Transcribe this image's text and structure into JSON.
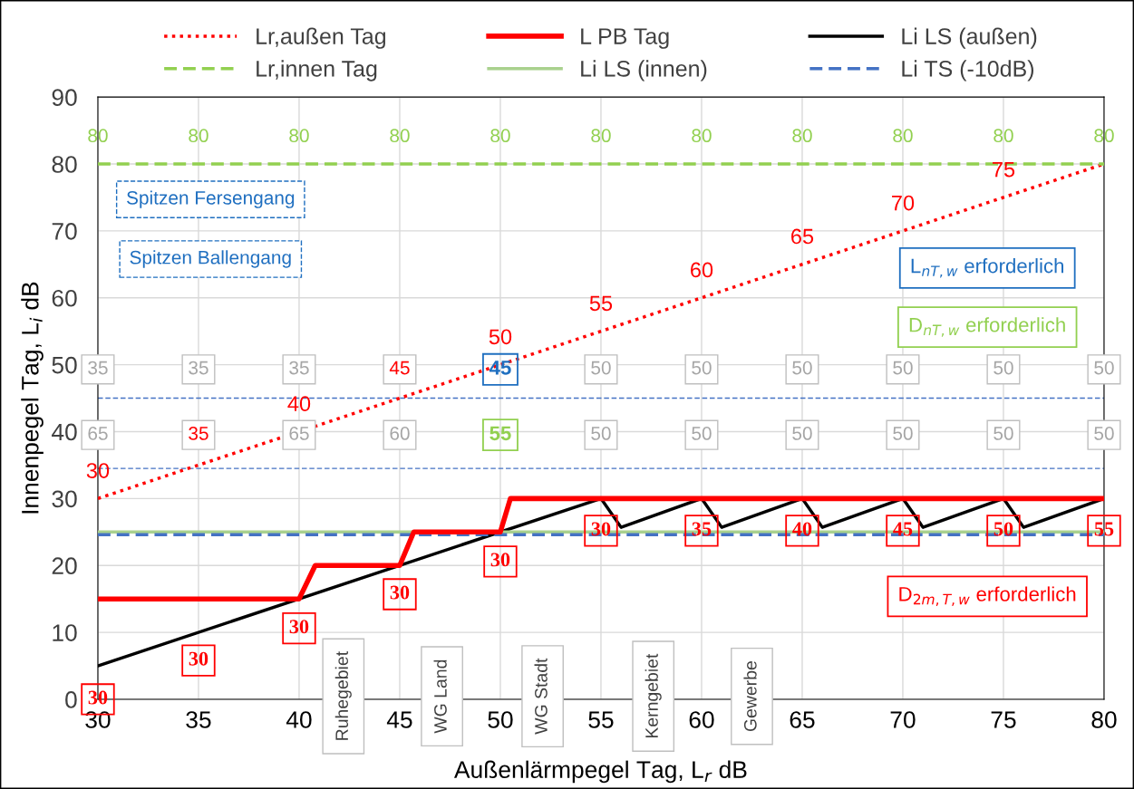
{
  "chart_data": {
    "type": "line",
    "xlabel": "Außenlärmpegel Tag, L$_{r}$ dB",
    "ylabel": "Innenpegel Tag, L$_{i}$ dB",
    "xlim": [
      30,
      80
    ],
    "xticks": [
      30,
      35,
      40,
      45,
      50,
      55,
      60,
      65,
      70,
      75,
      80
    ],
    "ylim": [
      0,
      90
    ],
    "yticks": [
      0,
      10,
      20,
      30,
      40,
      50,
      60,
      70,
      80,
      90
    ],
    "grid": true,
    "legend": "top",
    "series": [
      {
        "name": "Lr,außen Tag",
        "color": "#ff0000",
        "line_style": "dotted",
        "x": [
          30,
          80
        ],
        "values": [
          30,
          80
        ]
      },
      {
        "name": "L PB Tag",
        "color": "#ff0000",
        "line_style": "solid",
        "x": [
          30,
          40,
          40.8,
          45,
          45.7,
          50,
          50.5,
          80
        ],
        "values": [
          15,
          15,
          20,
          20,
          25,
          25,
          30,
          30
        ]
      },
      {
        "name": "Li LS (außen)",
        "color": "#000000",
        "line_style": "solid",
        "x": [
          30,
          55,
          56,
          60,
          61,
          65,
          66,
          70,
          71,
          75,
          76,
          80
        ],
        "values": [
          5,
          30,
          25.7,
          30,
          25.7,
          30,
          25.7,
          30,
          25.7,
          30,
          25.7,
          30
        ]
      },
      {
        "name": "Lr,innen Tag",
        "color": "#92d050",
        "line_style": "dashed",
        "x": [
          30,
          80
        ],
        "values": [
          80,
          80
        ]
      },
      {
        "name": "Li LS (innen)",
        "color": "#a9d18e",
        "line_style": "solid",
        "x": [
          30,
          80
        ],
        "values": [
          25,
          25
        ]
      },
      {
        "name": "Li TS (-10dB)",
        "color": "#4472c4",
        "line_style": "dashed",
        "x": [
          30,
          80
        ],
        "values": [
          24.6,
          24.6
        ]
      }
    ],
    "ref_lines": [
      {
        "axis": "y",
        "value": 45,
        "color": "#4472c4",
        "line_style": "dashed"
      },
      {
        "axis": "y",
        "value": 34.5,
        "color": "#4472c4",
        "line_style": "dashed"
      }
    ],
    "annotations": [
      "80",
      "80",
      "80",
      "80",
      "80",
      "80",
      "80",
      "80",
      "80",
      "80",
      "80",
      "30",
      "35",
      "40",
      "45",
      "50",
      "55",
      "60",
      "65",
      "70",
      "75",
      "35",
      "35",
      "35",
      "45",
      "45",
      "50",
      "50",
      "50",
      "50",
      "50",
      "50",
      "65",
      "35",
      "65",
      "60",
      "55",
      "50",
      "50",
      "50",
      "50",
      "50",
      "50",
      "30",
      "30",
      "30",
      "30",
      "30",
      "30",
      "35",
      "40",
      "45",
      "50",
      "55",
      "Ruhegebiet",
      "WG Land",
      "WG Stadt",
      "Kerngebiet",
      "Gewerbe",
      "Spitzen Fersengang",
      "Spitzen Ballengang",
      "L$_{nT,w}$ erforderlich",
      "D$_{nT,w}$ erforderlich",
      "D$_{2m,T,w}$ erforderlich"
    ]
  }
}
